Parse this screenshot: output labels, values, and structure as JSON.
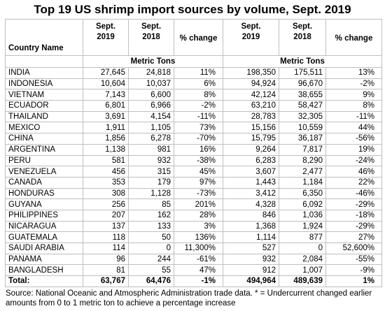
{
  "title": "Top 19 US shrimp import sources by volume, Sept. 2019",
  "table": {
    "headers": [
      [
        "Country Name"
      ],
      [
        "Sept.",
        "2019"
      ],
      [
        "Sept.",
        "2018"
      ],
      [
        "% change"
      ],
      [
        "Sept.",
        "2019"
      ],
      [
        "Sept.",
        "2018"
      ],
      [
        "% change"
      ]
    ],
    "units": [
      "Metric Tons",
      "Metric Tons"
    ],
    "rows": [
      [
        "INDIA",
        "27,645",
        "24,818",
        "11%",
        "198,350",
        "175,511",
        "13%"
      ],
      [
        "INDONESIA",
        "10,604",
        "10,037",
        "6%",
        "94,924",
        "96,670",
        "-2%"
      ],
      [
        "VIETNAM",
        "7,143",
        "6,600",
        "8%",
        "42,124",
        "38,655",
        "9%"
      ],
      [
        "ECUADOR",
        "6,801",
        "6,966",
        "-2%",
        "63,210",
        "58,427",
        "8%"
      ],
      [
        "THAILAND",
        "3,691",
        "4,154",
        "-11%",
        "28,783",
        "32,305",
        "-11%"
      ],
      [
        "MEXICO",
        "1,911",
        "1,105",
        "73%",
        "15,156",
        "10,559",
        "44%"
      ],
      [
        "CHINA",
        "1,856",
        "6,278",
        "-70%",
        "15,795",
        "36,187",
        "-56%"
      ],
      [
        "ARGENTINA",
        "1,138",
        "981",
        "16%",
        "9,264",
        "7,817",
        "19%"
      ],
      [
        "PERU",
        "581",
        "932",
        "-38%",
        "6,283",
        "8,290",
        "-24%"
      ],
      [
        "VENEZUELA",
        "456",
        "315",
        "45%",
        "3,607",
        "2,477",
        "46%"
      ],
      [
        "CANADA",
        "353",
        "179",
        "97%",
        "1,443",
        "1,184",
        "22%"
      ],
      [
        "HONDURAS",
        "308",
        "1,128",
        "-73%",
        "3,412",
        "6,350",
        "-46%"
      ],
      [
        "GUYANA",
        "256",
        "85",
        "201%",
        "4,328",
        "6,092",
        "-29%"
      ],
      [
        "PHILIPPINES",
        "207",
        "162",
        "28%",
        "846",
        "1,036",
        "-18%"
      ],
      [
        "NICARAGUA",
        "137",
        "133",
        "3%",
        "1,368",
        "1,924",
        "-29%"
      ],
      [
        "GUATEMALA",
        "118",
        "50",
        "136%",
        "1,114",
        "877",
        "27%"
      ],
      [
        "SAUDI ARABIA",
        "114",
        "0",
        "11,300%",
        "527",
        "0",
        "52,600%"
      ],
      [
        "PANAMA",
        "96",
        "244",
        "-61%",
        "932",
        "2,084",
        "-55%"
      ],
      [
        "BANGLADESH",
        "81",
        "55",
        "47%",
        "912",
        "1,007",
        "-9%"
      ]
    ],
    "total": [
      "Total:",
      "63,767",
      "64,476",
      "-1%",
      "494,964",
      "489,639",
      "1%"
    ]
  },
  "source": "Source: National Oceanic and Atmospheric Administration trade data. * = Undercurrent changed earlier amounts from 0 to 1 metric ton to achieve a percentage increase"
}
